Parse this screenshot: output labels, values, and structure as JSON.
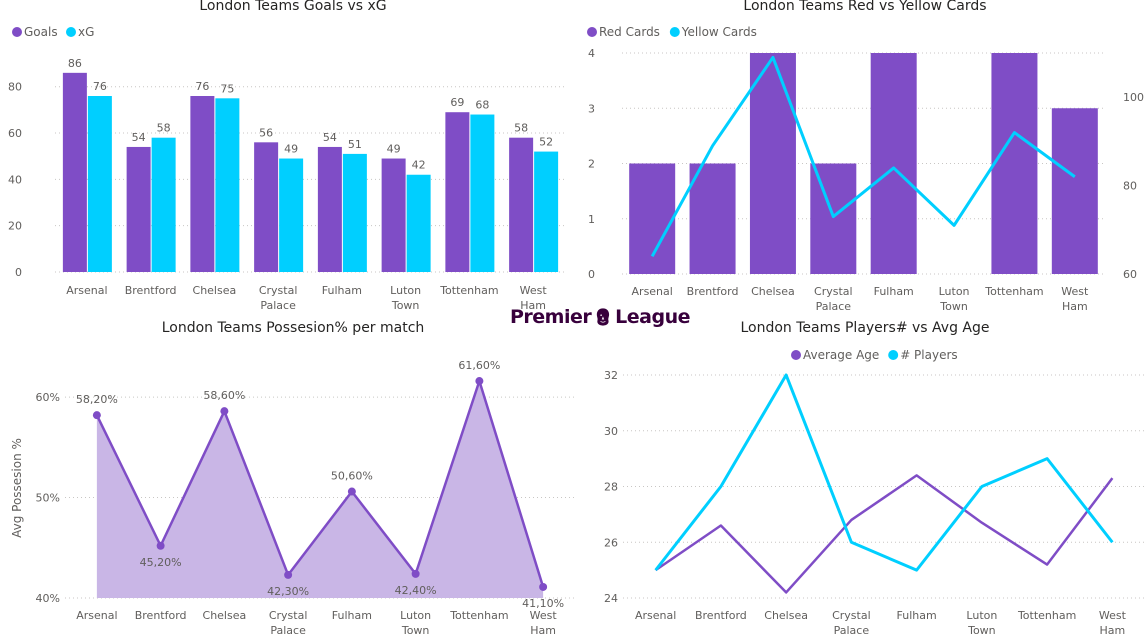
{
  "colors": {
    "purple": "#7f4dc6",
    "cyan": "#00cfff",
    "area": "#c9b6e6",
    "logo": "#38003c"
  },
  "logo": {
    "word1": "Premier",
    "word2": "League",
    "icon": "lion-crest-icon"
  },
  "chart_data": [
    {
      "id": "goals",
      "type": "bar",
      "title": "London Teams Goals vs xG",
      "legend_position": "top-left",
      "categories": [
        "Arsenal",
        "Brentford",
        "Chelsea",
        "Crystal Palace",
        "Fulham",
        "Luton Town",
        "Tottenham",
        "West Ham"
      ],
      "series": [
        {
          "name": "Goals",
          "values": [
            86,
            54,
            76,
            56,
            54,
            49,
            69,
            58
          ]
        },
        {
          "name": "xG",
          "values": [
            76,
            58,
            75,
            49,
            51,
            42,
            68,
            52
          ]
        }
      ],
      "yticks": [
        0,
        20,
        40,
        60,
        80
      ],
      "ylim": [
        0,
        95
      ],
      "grid": true
    },
    {
      "id": "cards",
      "type": "bar",
      "title": "London Teams Red vs Yellow Cards",
      "legend_position": "top-left",
      "categories": [
        "Arsenal",
        "Brentford",
        "Chelsea",
        "Crystal Palace",
        "Fulham",
        "Luton Town",
        "Tottenham",
        "West Ham"
      ],
      "series": [
        {
          "name": "Red Cards",
          "type": "bar",
          "axis": "left",
          "values": [
            2,
            2,
            4,
            2,
            4,
            0,
            4,
            3
          ]
        },
        {
          "name": "Yellow Cards",
          "type": "line",
          "axis": "right",
          "values": [
            64,
            89,
            109,
            73,
            84,
            71,
            92,
            82
          ]
        }
      ],
      "yticks": [
        0,
        1,
        2,
        3,
        4
      ],
      "ylim": [
        0,
        4
      ],
      "y2ticks": [
        60,
        80,
        100
      ],
      "y2lim": [
        60,
        110
      ],
      "grid": true
    },
    {
      "id": "possession",
      "type": "area",
      "title": "London Teams Possesion% per match",
      "ylabel": "Avg Possesion %",
      "categories": [
        "Arsenal",
        "Brentford",
        "Chelsea",
        "Crystal Palace",
        "Fulham",
        "Luton Town",
        "Tottenham",
        "West Ham"
      ],
      "values": [
        58.2,
        45.2,
        58.6,
        42.3,
        50.6,
        42.4,
        61.6,
        41.1
      ],
      "value_labels": [
        "58,20%",
        "45,20%",
        "58,60%",
        "42,30%",
        "50,60%",
        "42,40%",
        "61,60%",
        "41,10%"
      ],
      "yticks": [
        40,
        50,
        60
      ],
      "ytick_labels": [
        "40%",
        "50%",
        "60%"
      ],
      "ylim": [
        40,
        62
      ],
      "grid": true
    },
    {
      "id": "players",
      "type": "line",
      "title": "London Teams Players# vs Avg Age",
      "legend_position": "top-center",
      "categories": [
        "Arsenal",
        "Brentford",
        "Chelsea",
        "Crystal Palace",
        "Fulham",
        "Luton Town",
        "Tottenham",
        "West Ham"
      ],
      "series": [
        {
          "name": "Average Age",
          "values": [
            25.0,
            26.6,
            24.2,
            26.8,
            28.4,
            26.7,
            25.2,
            28.3
          ]
        },
        {
          "name": "# Players",
          "values": [
            25,
            28,
            32,
            26,
            25,
            28,
            29,
            26
          ]
        }
      ],
      "yticks": [
        24,
        26,
        28,
        30,
        32
      ],
      "ylim": [
        24,
        32
      ],
      "grid": true
    }
  ]
}
